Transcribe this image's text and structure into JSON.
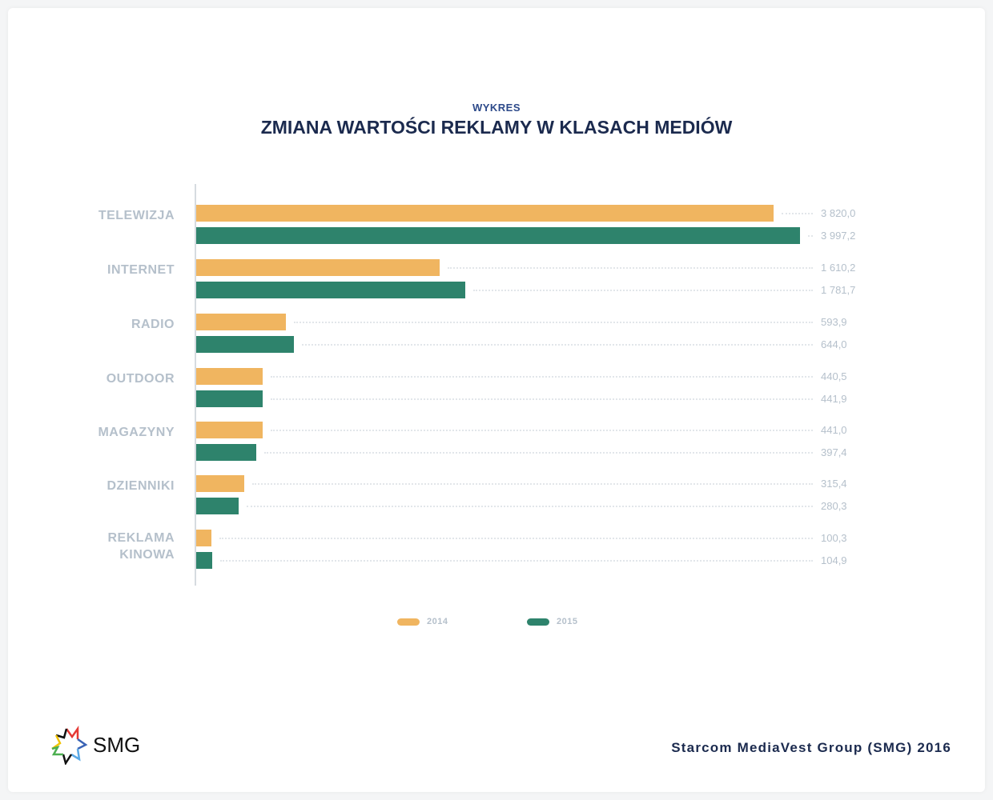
{
  "chart_data": {
    "type": "bar",
    "orientation": "horizontal",
    "subtitle": "WYKRES",
    "title": "ZMIANA WARTOŚCI REKLAMY W KLASACH MEDIÓW",
    "categories": [
      [
        "TELEWIZJA"
      ],
      [
        "INTERNET"
      ],
      [
        "RADIO"
      ],
      [
        "OUTDOOR"
      ],
      [
        "MAGAZYNY"
      ],
      [
        "DZIENNIKI"
      ],
      [
        "REKLAMA",
        "KINOWA"
      ]
    ],
    "series": [
      {
        "name": "2014",
        "color": "#f0b560",
        "values": [
          3820.0,
          1610.2,
          593.9,
          440.5,
          441.0,
          315.4,
          100.3
        ],
        "labels": [
          "3 820,0",
          "1 610,2",
          "593,9",
          "440,5",
          "441,0",
          "315,4",
          "100,3"
        ]
      },
      {
        "name": "2015",
        "color": "#2e836c",
        "values": [
          3997.2,
          1781.7,
          644.0,
          441.9,
          397.4,
          280.3,
          104.9
        ],
        "labels": [
          "3 997,2",
          "1 781,7",
          "644,0",
          "441,9",
          "397,4",
          "280,3",
          "104,9"
        ]
      }
    ],
    "xlim": [
      0,
      4000
    ],
    "legend": "bottom"
  },
  "footer": {
    "source": "Starcom MediaVest Group (SMG) 2016",
    "logo_text": "SMG"
  }
}
